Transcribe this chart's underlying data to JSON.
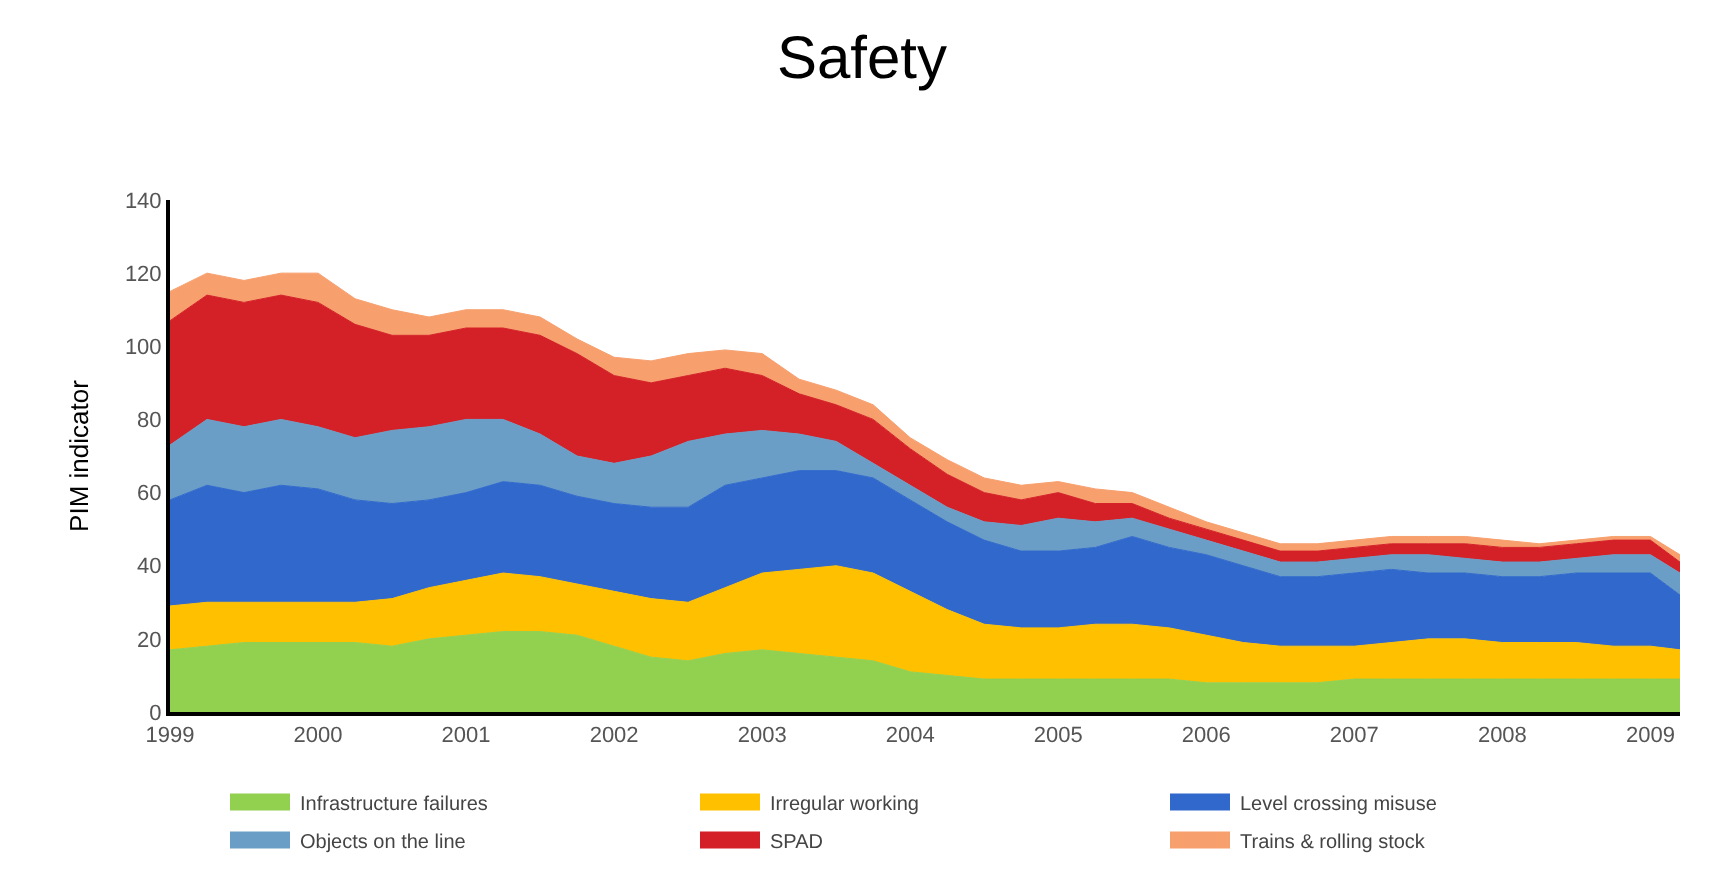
{
  "chart_data": {
    "type": "area",
    "stacked": true,
    "title": "Safety",
    "ylabel": "PIM indicator",
    "x": [
      1999,
      1999.25,
      1999.5,
      1999.75,
      2000,
      2000.25,
      2000.5,
      2000.75,
      2001,
      2001.25,
      2001.5,
      2001.75,
      2002,
      2002.25,
      2002.5,
      2002.75,
      2003,
      2003.25,
      2003.5,
      2003.75,
      2004,
      2004.25,
      2004.5,
      2004.75,
      2005,
      2005.25,
      2005.5,
      2005.75,
      2006,
      2006.25,
      2006.5,
      2006.75,
      2007,
      2007.25,
      2007.5,
      2007.75,
      2008,
      2008.25,
      2008.5,
      2008.75,
      2009,
      2009.2
    ],
    "series": [
      {
        "name": "Infrastructure failures",
        "color": "#92d050",
        "values": [
          17,
          18,
          19,
          19,
          19,
          19,
          18,
          20,
          21,
          22,
          22,
          21,
          18,
          15,
          14,
          16,
          17,
          16,
          15,
          14,
          11,
          10,
          9,
          9,
          9,
          9,
          9,
          9,
          8,
          8,
          8,
          8,
          9,
          9,
          9,
          9,
          9,
          9,
          9,
          9,
          9,
          9
        ]
      },
      {
        "name": "Irregular working",
        "color": "#ffc000",
        "values": [
          12,
          12,
          11,
          11,
          11,
          11,
          13,
          14,
          15,
          16,
          15,
          14,
          15,
          16,
          16,
          18,
          21,
          23,
          25,
          24,
          22,
          18,
          15,
          14,
          14,
          15,
          15,
          14,
          13,
          11,
          10,
          10,
          9,
          10,
          11,
          11,
          10,
          10,
          10,
          9,
          9,
          8
        ]
      },
      {
        "name": "Level crossing misuse",
        "color": "#3068cc",
        "values": [
          29,
          32,
          30,
          32,
          31,
          28,
          26,
          24,
          24,
          25,
          25,
          24,
          24,
          25,
          26,
          28,
          26,
          27,
          26,
          26,
          25,
          24,
          23,
          21,
          21,
          21,
          24,
          22,
          22,
          21,
          19,
          19,
          20,
          20,
          18,
          18,
          18,
          18,
          19,
          20,
          20,
          15
        ]
      },
      {
        "name": "Objects on the line",
        "color": "#6b9ec6",
        "values": [
          15,
          18,
          18,
          18,
          17,
          17,
          20,
          20,
          20,
          17,
          14,
          11,
          11,
          14,
          18,
          14,
          13,
          10,
          8,
          4,
          4,
          4,
          5,
          7,
          9,
          7,
          5,
          5,
          4,
          4,
          4,
          4,
          4,
          4,
          5,
          4,
          4,
          4,
          4,
          5,
          5,
          6
        ]
      },
      {
        "name": "SPAD",
        "color": "#d42027",
        "values": [
          34,
          34,
          34,
          34,
          34,
          31,
          26,
          25,
          25,
          25,
          27,
          28,
          24,
          20,
          18,
          18,
          15,
          11,
          10,
          12,
          10,
          9,
          8,
          7,
          7,
          5,
          4,
          3,
          3,
          3,
          3,
          3,
          3,
          3,
          3,
          4,
          4,
          4,
          4,
          4,
          4,
          3
        ]
      },
      {
        "name": "Trains & rolling stock",
        "color": "#f7a06e",
        "values": [
          8,
          6,
          6,
          6,
          8,
          7,
          7,
          5,
          5,
          5,
          5,
          4,
          5,
          6,
          6,
          5,
          6,
          4,
          4,
          4,
          3,
          4,
          4,
          4,
          3,
          4,
          3,
          3,
          2,
          2,
          2,
          2,
          2,
          2,
          2,
          2,
          2,
          1,
          1,
          1,
          1,
          2
        ]
      }
    ],
    "xlim": [
      1999,
      2009.2
    ],
    "xticks": [
      1999,
      2000,
      2001,
      2002,
      2003,
      2004,
      2005,
      2006,
      2007,
      2008,
      2009
    ],
    "ylim": [
      0,
      140
    ],
    "yticks": [
      0,
      20,
      40,
      60,
      80,
      100,
      120,
      140
    ],
    "legend": "bottom"
  }
}
